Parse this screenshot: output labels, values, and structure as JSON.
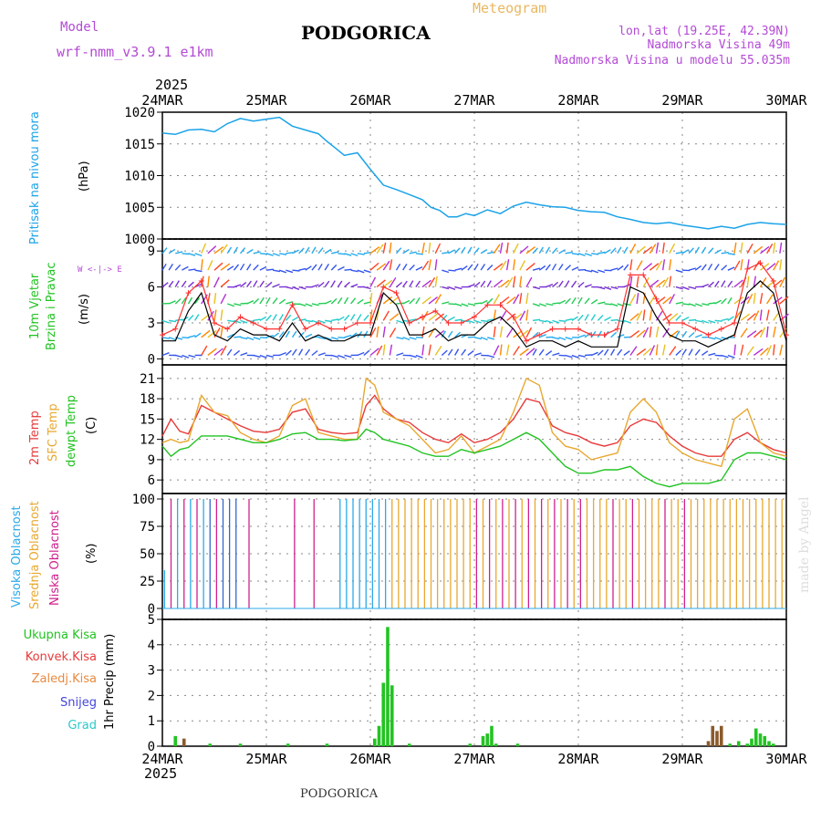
{
  "header": {
    "model_label": "Model",
    "model_name": "wrf-nmm_v3.9.1  e1km",
    "title": "PODGORICA",
    "product": "Meteogram",
    "lonlat": "lon,lat (19.25E, 42.39N)",
    "elevation": "Nadmorska Visina 49m",
    "elevation_model": "Nadmorska Visina u modelu 55.035m",
    "footer_station": "PODGORICA",
    "credit": "made by Angel"
  },
  "colors": {
    "pressure": "#1aa3e8",
    "wind_speed": "#000000",
    "gust": "#ff3030",
    "temp2m": "#e83a3a",
    "sfc_temp": "#e8a830",
    "dewpoint": "#22c322",
    "cloud_high": "#2aa9e8",
    "cloud_mid": "#e8a830",
    "cloud_low": "#d01f8c",
    "precip_total": "#22c322",
    "precip_conv": "#8b5a2b"
  },
  "time_axis": {
    "year": "2025",
    "days": [
      "24MAR",
      "25MAR",
      "26MAR",
      "27MAR",
      "28MAR",
      "29MAR",
      "30MAR"
    ]
  },
  "panels": {
    "pressure": {
      "label": "Pritisak na nivou mora",
      "unit": "(hPa)",
      "yticks": [
        "1000",
        "1005",
        "1010",
        "1015",
        "1020"
      ]
    },
    "wind": {
      "label1": "10m Vjetar",
      "label2": "Brzina i Pravac",
      "unit": "(m/s)",
      "yticks": [
        "0",
        "3",
        "6",
        "9"
      ],
      "compass": "W <-|-> E"
    },
    "temp": {
      "label1": "2m Temp",
      "label2": "SFC Temp",
      "label3": "dewpt Temp",
      "unit": "(C)",
      "yticks": [
        "6",
        "9",
        "12",
        "15",
        "18",
        "21"
      ]
    },
    "cloud": {
      "label1": "Visoka Oblacnost",
      "label2": "Srednja Oblacnost",
      "label3": "Niska Oblacnost",
      "unit": "(%)",
      "yticks": [
        "0",
        "25",
        "50",
        "75",
        "100"
      ]
    },
    "precip": {
      "legend": [
        "Ukupna Kisa",
        "Konvek.Kisa",
        "Zaledj.Kisa",
        "Snijeg",
        "Grad"
      ],
      "unit": "1hr Precip (mm)",
      "yticks": [
        "0",
        "1",
        "2",
        "3",
        "4",
        "5"
      ]
    }
  },
  "chart_data": [
    {
      "type": "line",
      "name": "pressure",
      "x_hours": [
        0,
        3,
        6,
        9,
        12,
        15,
        18,
        21,
        24,
        27,
        30,
        33,
        36,
        38,
        40,
        42,
        45,
        48,
        51,
        54,
        57,
        60,
        62,
        64,
        66,
        68,
        70,
        72,
        75,
        78,
        81,
        84,
        87,
        90,
        93,
        96,
        99,
        102,
        105,
        108,
        111,
        114,
        117,
        120,
        123,
        126,
        129,
        132,
        135,
        138,
        141,
        144
      ],
      "y": [
        1016.7,
        1016.5,
        1017.2,
        1017.3,
        1016.9,
        1018.2,
        1019.0,
        1018.6,
        1018.9,
        1019.2,
        1017.8,
        1017.2,
        1016.6,
        1015.4,
        1014.3,
        1013.2,
        1013.6,
        1011.0,
        1008.5,
        1007.8,
        1007.0,
        1006.2,
        1005.0,
        1004.5,
        1003.5,
        1003.5,
        1004.0,
        1003.7,
        1004.6,
        1004.0,
        1005.2,
        1005.8,
        1005.4,
        1005.1,
        1005.0,
        1004.5,
        1004.3,
        1004.2,
        1003.5,
        1003.1,
        1002.6,
        1002.4,
        1002.6,
        1002.2,
        1001.9,
        1001.6,
        1002.0,
        1001.7,
        1002.3,
        1002.6,
        1002.4,
        1002.3
      ],
      "ylim": [
        1000,
        1020
      ]
    },
    {
      "type": "line",
      "name": "temperature",
      "x_hours": [
        0,
        2,
        4,
        6,
        9,
        12,
        15,
        18,
        21,
        24,
        27,
        30,
        33,
        36,
        39,
        42,
        45,
        47,
        49,
        51,
        54,
        57,
        60,
        63,
        66,
        69,
        72,
        75,
        78,
        81,
        84,
        87,
        90,
        93,
        96,
        99,
        102,
        105,
        108,
        111,
        114,
        117,
        120,
        123,
        126,
        129,
        132,
        135,
        138,
        141,
        144
      ],
      "series": [
        {
          "name": "2m Temp",
          "values": [
            12.5,
            15.0,
            13.2,
            12.8,
            17.0,
            16.0,
            15.0,
            14.0,
            13.2,
            13.0,
            13.5,
            16.0,
            16.5,
            13.5,
            13.0,
            12.8,
            13.0,
            17.0,
            18.5,
            16.5,
            15.0,
            14.5,
            13.0,
            12.0,
            11.5,
            12.8,
            11.5,
            12.0,
            13.0,
            15.0,
            18.0,
            17.5,
            14.0,
            13.0,
            12.5,
            11.5,
            11.0,
            11.5,
            14.0,
            15.0,
            14.5,
            12.5,
            11.0,
            10.0,
            9.5,
            9.5,
            12.0,
            13.0,
            11.5,
            10.5,
            10.0
          ]
        },
        {
          "name": "SFC Temp",
          "values": [
            11.5,
            12.0,
            11.5,
            11.8,
            18.5,
            16.0,
            15.5,
            13.0,
            12.0,
            11.5,
            12.5,
            17.0,
            18.0,
            13.0,
            12.5,
            12.0,
            12.0,
            21.0,
            20.0,
            16.0,
            15.0,
            14.0,
            12.0,
            10.0,
            10.5,
            12.5,
            10.0,
            11.0,
            12.0,
            16.0,
            21.0,
            20.0,
            13.0,
            11.0,
            10.5,
            9.0,
            9.5,
            10.0,
            16.0,
            18.0,
            16.0,
            11.5,
            10.0,
            9.0,
            8.5,
            8.0,
            15.0,
            16.5,
            11.5,
            10.0,
            9.5
          ]
        },
        {
          "name": "dewpt Temp",
          "values": [
            11.0,
            9.5,
            10.5,
            10.8,
            12.5,
            12.5,
            12.5,
            12.0,
            11.5,
            11.5,
            12.0,
            12.8,
            13.0,
            12.0,
            12.0,
            11.8,
            12.0,
            13.5,
            13.0,
            12.0,
            11.5,
            11.0,
            10.0,
            9.5,
            9.5,
            10.5,
            10.0,
            10.5,
            11.0,
            12.0,
            13.0,
            12.0,
            10.0,
            8.0,
            7.0,
            7.0,
            7.5,
            7.5,
            8.0,
            6.5,
            5.5,
            5.0,
            5.5,
            5.5,
            5.5,
            6.0,
            9.0,
            10.0,
            10.0,
            9.5,
            9.0
          ]
        }
      ],
      "ylim": [
        4,
        23
      ]
    },
    {
      "type": "line",
      "name": "wind_speed",
      "x_hours": [
        0,
        3,
        6,
        9,
        12,
        15,
        18,
        21,
        24,
        27,
        30,
        33,
        36,
        39,
        42,
        45,
        48,
        51,
        54,
        57,
        60,
        63,
        66,
        69,
        72,
        75,
        78,
        81,
        84,
        87,
        90,
        93,
        96,
        99,
        102,
        105,
        108,
        111,
        114,
        117,
        120,
        123,
        126,
        129,
        132,
        135,
        138,
        141,
        144
      ],
      "series": [
        {
          "name": "speed",
          "values": [
            1.5,
            1.5,
            4.0,
            5.5,
            2.0,
            1.5,
            2.5,
            2.0,
            2.0,
            1.5,
            3.0,
            1.5,
            2.0,
            1.5,
            1.5,
            2.0,
            2.0,
            5.5,
            4.5,
            2.0,
            2.0,
            2.5,
            1.5,
            2.0,
            2.0,
            3.0,
            3.5,
            2.5,
            1.0,
            1.5,
            1.5,
            1.0,
            1.5,
            1.0,
            1.0,
            1.0,
            6.0,
            5.5,
            3.5,
            2.0,
            1.5,
            1.5,
            1.0,
            1.5,
            2.0,
            5.5,
            6.5,
            5.5,
            1.5
          ]
        },
        {
          "name": "gust",
          "values": [
            2.0,
            2.5,
            5.5,
            6.5,
            3.0,
            2.5,
            3.5,
            3.0,
            2.5,
            2.5,
            4.5,
            2.5,
            3.0,
            2.5,
            2.5,
            3.0,
            3.0,
            6.0,
            5.5,
            3.0,
            3.5,
            4.0,
            3.0,
            3.0,
            3.5,
            4.5,
            4.5,
            3.5,
            1.5,
            2.0,
            2.5,
            2.5,
            2.5,
            2.0,
            2.0,
            2.5,
            7.0,
            7.0,
            5.0,
            3.0,
            3.0,
            2.5,
            2.0,
            2.5,
            3.0,
            7.5,
            8.0,
            6.5,
            2.0
          ]
        }
      ],
      "ylim": [
        -0.5,
        10
      ]
    },
    {
      "type": "bar",
      "name": "precip_total",
      "x_hours": [
        3,
        5,
        11,
        18,
        29,
        38,
        49,
        50,
        51,
        52,
        53,
        57,
        71,
        74,
        75,
        76,
        77,
        82,
        126,
        127,
        128,
        129,
        131,
        133,
        135,
        136,
        137,
        138,
        139,
        140,
        141
      ],
      "values": [
        0.4,
        0.3,
        0.1,
        0.1,
        0.1,
        0.1,
        0.3,
        0.8,
        2.5,
        4.7,
        2.4,
        0.1,
        0.1,
        0.4,
        0.5,
        0.8,
        0.1,
        0.1,
        0.2,
        0.8,
        0.6,
        0.8,
        0.1,
        0.2,
        0.1,
        0.3,
        0.7,
        0.5,
        0.4,
        0.2,
        0.1
      ],
      "ylim": [
        0,
        5
      ]
    },
    {
      "type": "bar",
      "name": "cloud_cover",
      "ylim": [
        0,
        100
      ],
      "note_values_percent": "mostly 100 or 0"
    }
  ]
}
